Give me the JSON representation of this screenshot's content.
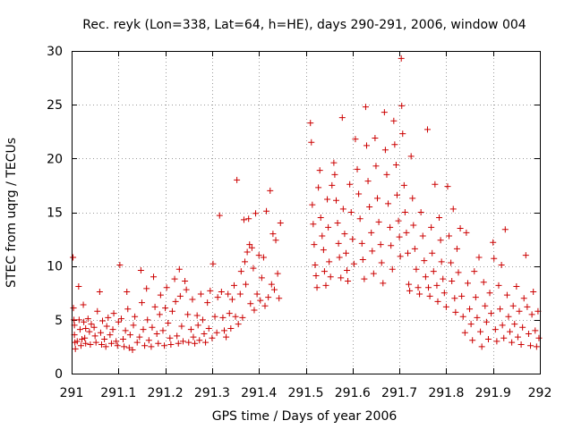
{
  "chart_data": {
    "type": "scatter",
    "title": "Rec. reyk (Lon=338, Lat=64, h=HE), days 290-291, 2006, window 004",
    "xlabel": "GPS time / Days of year 2006",
    "ylabel": "STEC from uqrg / TECUs",
    "xlim": [
      291,
      292
    ],
    "ylim": [
      0,
      30
    ],
    "x_ticks": [
      291,
      291.1,
      291.2,
      291.3,
      291.4,
      291.5,
      291.6,
      291.7,
      291.8,
      291.9,
      292
    ],
    "x_tick_labels": [
      "291",
      "291.1",
      "291.2",
      "291.3",
      "291.4",
      "291.5",
      "291.6",
      "291.7",
      "291.8",
      "291.9",
      "292"
    ],
    "y_ticks": [
      0,
      5,
      10,
      15,
      20,
      25,
      30
    ],
    "y_tick_labels": [
      "0",
      "5",
      "10",
      "15",
      "20",
      "25",
      "30"
    ],
    "grid": true,
    "marker": "+",
    "color": "#cc0000",
    "points": [
      [
        291.003,
        10.8
      ],
      [
        291.004,
        6.1
      ],
      [
        291.005,
        5.0
      ],
      [
        291.006,
        3.6
      ],
      [
        291.007,
        2.9
      ],
      [
        291.008,
        2.3
      ],
      [
        291.006,
        4.5
      ],
      [
        291.012,
        3.0
      ],
      [
        291.015,
        8.1
      ],
      [
        291.016,
        5.0
      ],
      [
        291.018,
        4.1
      ],
      [
        291.02,
        2.6
      ],
      [
        291.022,
        3.2
      ],
      [
        291.025,
        6.4
      ],
      [
        291.026,
        4.8
      ],
      [
        291.028,
        3.3
      ],
      [
        291.03,
        2.8
      ],
      [
        291.03,
        4.2
      ],
      [
        291.035,
        5.1
      ],
      [
        291.038,
        3.9
      ],
      [
        291.04,
        2.7
      ],
      [
        291.042,
        4.6
      ],
      [
        291.048,
        4.3
      ],
      [
        291.05,
        3.5
      ],
      [
        291.052,
        2.9
      ],
      [
        291.055,
        5.8
      ],
      [
        291.06,
        7.6
      ],
      [
        291.062,
        3.8
      ],
      [
        291.064,
        2.7
      ],
      [
        291.066,
        4.9
      ],
      [
        291.07,
        3.2
      ],
      [
        291.073,
        2.5
      ],
      [
        291.075,
        4.4
      ],
      [
        291.078,
        5.2
      ],
      [
        291.082,
        3.6
      ],
      [
        291.085,
        2.8
      ],
      [
        291.088,
        4.1
      ],
      [
        291.09,
        5.6
      ],
      [
        291.095,
        3.0
      ],
      [
        291.098,
        2.6
      ],
      [
        291.1,
        4.8
      ],
      [
        291.103,
        10.1
      ],
      [
        291.106,
        5.1
      ],
      [
        291.11,
        3.2
      ],
      [
        291.112,
        2.5
      ],
      [
        291.115,
        4.0
      ],
      [
        291.118,
        7.6
      ],
      [
        291.12,
        6.0
      ],
      [
        291.123,
        2.4
      ],
      [
        291.125,
        3.6
      ],
      [
        291.13,
        2.2
      ],
      [
        291.132,
        4.5
      ],
      [
        291.135,
        5.3
      ],
      [
        291.14,
        2.9
      ],
      [
        291.145,
        3.4
      ],
      [
        291.148,
        9.6
      ],
      [
        291.15,
        6.6
      ],
      [
        291.153,
        4.1
      ],
      [
        291.156,
        2.6
      ],
      [
        291.16,
        7.9
      ],
      [
        291.162,
        5.0
      ],
      [
        291.165,
        3.1
      ],
      [
        291.17,
        2.5
      ],
      [
        291.172,
        4.3
      ],
      [
        291.175,
        9.0
      ],
      [
        291.178,
        6.2
      ],
      [
        291.182,
        3.7
      ],
      [
        291.185,
        2.8
      ],
      [
        291.188,
        5.5
      ],
      [
        291.19,
        7.3
      ],
      [
        291.195,
        4.0
      ],
      [
        291.198,
        2.6
      ],
      [
        291.2,
        6.1
      ],
      [
        291.203,
        8.0
      ],
      [
        291.206,
        4.7
      ],
      [
        291.21,
        3.3
      ],
      [
        291.212,
        2.7
      ],
      [
        291.215,
        5.8
      ],
      [
        291.22,
        8.8
      ],
      [
        291.222,
        6.7
      ],
      [
        291.225,
        3.5
      ],
      [
        291.228,
        2.8
      ],
      [
        291.23,
        9.7
      ],
      [
        291.232,
        7.2
      ],
      [
        291.235,
        4.4
      ],
      [
        291.238,
        3.0
      ],
      [
        291.242,
        8.6
      ],
      [
        291.245,
        7.8
      ],
      [
        291.248,
        5.5
      ],
      [
        291.25,
        2.9
      ],
      [
        291.255,
        4.1
      ],
      [
        291.258,
        6.9
      ],
      [
        291.26,
        3.4
      ],
      [
        291.263,
        2.8
      ],
      [
        291.268,
        5.4
      ],
      [
        291.27,
        4.5
      ],
      [
        291.273,
        3.1
      ],
      [
        291.276,
        7.4
      ],
      [
        291.28,
        5.0
      ],
      [
        291.283,
        3.7
      ],
      [
        291.286,
        2.9
      ],
      [
        291.29,
        6.6
      ],
      [
        291.293,
        4.2
      ],
      [
        291.296,
        7.7
      ],
      [
        291.3,
        3.3
      ],
      [
        291.302,
        10.2
      ],
      [
        291.306,
        5.3
      ],
      [
        291.31,
        3.8
      ],
      [
        291.312,
        7.1
      ],
      [
        291.316,
        14.7
      ],
      [
        291.32,
        7.6
      ],
      [
        291.323,
        5.2
      ],
      [
        291.326,
        4.0
      ],
      [
        291.33,
        3.4
      ],
      [
        291.334,
        7.4
      ],
      [
        291.337,
        5.6
      ],
      [
        291.34,
        4.2
      ],
      [
        291.343,
        6.9
      ],
      [
        291.347,
        8.2
      ],
      [
        291.35,
        5.3
      ],
      [
        291.353,
        18.0
      ],
      [
        291.356,
        4.6
      ],
      [
        291.36,
        7.4
      ],
      [
        291.362,
        9.5
      ],
      [
        291.365,
        5.2
      ],
      [
        291.368,
        14.3
      ],
      [
        291.37,
        10.4
      ],
      [
        291.372,
        8.3
      ],
      [
        291.375,
        11.3
      ],
      [
        291.378,
        14.4
      ],
      [
        291.38,
        12.0
      ],
      [
        291.382,
        6.5
      ],
      [
        291.385,
        11.7
      ],
      [
        291.388,
        9.8
      ],
      [
        291.39,
        5.9
      ],
      [
        291.393,
        14.9
      ],
      [
        291.396,
        7.4
      ],
      [
        291.4,
        11.0
      ],
      [
        291.403,
        6.8
      ],
      [
        291.406,
        8.9
      ],
      [
        291.41,
        10.8
      ],
      [
        291.413,
        6.3
      ],
      [
        291.416,
        15.1
      ],
      [
        291.42,
        7.1
      ],
      [
        291.424,
        17.0
      ],
      [
        291.427,
        8.3
      ],
      [
        291.43,
        13.0
      ],
      [
        291.433,
        7.8
      ],
      [
        291.436,
        12.4
      ],
      [
        291.44,
        9.3
      ],
      [
        291.443,
        7.0
      ],
      [
        291.446,
        14.0
      ],
      [
        291.51,
        23.3
      ],
      [
        291.512,
        21.5
      ],
      [
        291.514,
        15.7
      ],
      [
        291.516,
        13.9
      ],
      [
        291.518,
        12.0
      ],
      [
        291.52,
        10.1
      ],
      [
        291.522,
        9.1
      ],
      [
        291.524,
        8.0
      ],
      [
        291.527,
        17.3
      ],
      [
        291.53,
        18.9
      ],
      [
        291.532,
        14.5
      ],
      [
        291.535,
        12.8
      ],
      [
        291.538,
        11.5
      ],
      [
        291.54,
        9.5
      ],
      [
        291.543,
        8.2
      ],
      [
        291.546,
        16.2
      ],
      [
        291.548,
        13.6
      ],
      [
        291.55,
        10.4
      ],
      [
        291.553,
        9.0
      ],
      [
        291.556,
        17.5
      ],
      [
        291.56,
        19.6
      ],
      [
        291.562,
        18.5
      ],
      [
        291.565,
        16.1
      ],
      [
        291.568,
        14.0
      ],
      [
        291.57,
        12.1
      ],
      [
        291.572,
        10.8
      ],
      [
        291.575,
        8.9
      ],
      [
        291.578,
        23.8
      ],
      [
        291.58,
        15.3
      ],
      [
        291.583,
        13.0
      ],
      [
        291.586,
        11.2
      ],
      [
        291.588,
        9.6
      ],
      [
        291.59,
        8.6
      ],
      [
        291.594,
        17.6
      ],
      [
        291.597,
        15.0
      ],
      [
        291.6,
        12.5
      ],
      [
        291.603,
        10.2
      ],
      [
        291.606,
        21.8
      ],
      [
        291.61,
        19.0
      ],
      [
        291.613,
        16.7
      ],
      [
        291.616,
        14.4
      ],
      [
        291.62,
        12.1
      ],
      [
        291.622,
        10.6
      ],
      [
        291.625,
        8.8
      ],
      [
        291.628,
        24.8
      ],
      [
        291.63,
        21.2
      ],
      [
        291.633,
        17.9
      ],
      [
        291.636,
        15.5
      ],
      [
        291.64,
        13.1
      ],
      [
        291.642,
        11.4
      ],
      [
        291.645,
        9.3
      ],
      [
        291.648,
        21.9
      ],
      [
        291.65,
        19.3
      ],
      [
        291.653,
        16.3
      ],
      [
        291.656,
        14.1
      ],
      [
        291.66,
        12.0
      ],
      [
        291.662,
        10.3
      ],
      [
        291.665,
        8.4
      ],
      [
        291.668,
        24.3
      ],
      [
        291.67,
        20.8
      ],
      [
        291.673,
        18.5
      ],
      [
        291.676,
        15.8
      ],
      [
        291.68,
        13.6
      ],
      [
        291.682,
        11.9
      ],
      [
        291.685,
        9.7
      ],
      [
        291.688,
        23.5
      ],
      [
        291.69,
        21.3
      ],
      [
        291.693,
        19.4
      ],
      [
        291.695,
        16.6
      ],
      [
        291.698,
        14.2
      ],
      [
        291.7,
        12.7
      ],
      [
        291.702,
        10.9
      ],
      [
        291.704,
        29.3
      ],
      [
        291.705,
        24.9
      ],
      [
        291.707,
        22.3
      ],
      [
        291.71,
        17.5
      ],
      [
        291.712,
        15.0
      ],
      [
        291.715,
        13.1
      ],
      [
        291.718,
        11.2
      ],
      [
        291.72,
        8.3
      ],
      [
        291.722,
        7.7
      ],
      [
        291.725,
        20.2
      ],
      [
        291.728,
        16.3
      ],
      [
        291.73,
        13.8
      ],
      [
        291.733,
        11.6
      ],
      [
        291.736,
        9.7
      ],
      [
        291.74,
        8.0
      ],
      [
        291.743,
        7.4
      ],
      [
        291.746,
        15.0
      ],
      [
        291.75,
        12.8
      ],
      [
        291.753,
        10.5
      ],
      [
        291.756,
        9.0
      ],
      [
        291.76,
        22.7
      ],
      [
        291.762,
        8.0
      ],
      [
        291.765,
        7.2
      ],
      [
        291.768,
        13.6
      ],
      [
        291.77,
        11.2
      ],
      [
        291.773,
        9.5
      ],
      [
        291.776,
        17.6
      ],
      [
        291.78,
        8.2
      ],
      [
        291.782,
        6.7
      ],
      [
        291.785,
        14.5
      ],
      [
        291.788,
        12.4
      ],
      [
        291.79,
        10.4
      ],
      [
        291.793,
        8.8
      ],
      [
        291.796,
        7.5
      ],
      [
        291.8,
        6.2
      ],
      [
        291.803,
        17.4
      ],
      [
        291.806,
        12.8
      ],
      [
        291.81,
        10.3
      ],
      [
        291.812,
        8.6
      ],
      [
        291.815,
        15.3
      ],
      [
        291.818,
        7.0
      ],
      [
        291.82,
        5.7
      ],
      [
        291.823,
        11.6
      ],
      [
        291.826,
        9.4
      ],
      [
        291.83,
        13.5
      ],
      [
        291.833,
        7.2
      ],
      [
        291.836,
        5.3
      ],
      [
        291.84,
        3.8
      ],
      [
        291.843,
        13.1
      ],
      [
        291.846,
        8.4
      ],
      [
        291.85,
        6.0
      ],
      [
        291.853,
        4.6
      ],
      [
        291.856,
        3.1
      ],
      [
        291.86,
        9.5
      ],
      [
        291.863,
        7.1
      ],
      [
        291.866,
        5.2
      ],
      [
        291.87,
        10.8
      ],
      [
        291.873,
        3.9
      ],
      [
        291.876,
        2.5
      ],
      [
        291.88,
        8.5
      ],
      [
        291.883,
        6.3
      ],
      [
        291.886,
        4.8
      ],
      [
        291.89,
        3.2
      ],
      [
        291.893,
        7.5
      ],
      [
        291.896,
        5.6
      ],
      [
        291.9,
        12.2
      ],
      [
        291.902,
        10.7
      ],
      [
        291.905,
        4.1
      ],
      [
        291.908,
        3.0
      ],
      [
        291.912,
        8.2
      ],
      [
        291.915,
        6.0
      ],
      [
        291.918,
        10.1
      ],
      [
        291.92,
        4.5
      ],
      [
        291.923,
        3.3
      ],
      [
        291.926,
        13.4
      ],
      [
        291.93,
        7.3
      ],
      [
        291.933,
        5.3
      ],
      [
        291.936,
        3.9
      ],
      [
        291.94,
        2.9
      ],
      [
        291.943,
        6.3
      ],
      [
        291.946,
        4.6
      ],
      [
        291.95,
        8.1
      ],
      [
        291.953,
        3.4
      ],
      [
        291.956,
        5.8
      ],
      [
        291.96,
        2.7
      ],
      [
        291.963,
        4.3
      ],
      [
        291.966,
        7.0
      ],
      [
        291.97,
        11.0
      ],
      [
        291.973,
        6.2
      ],
      [
        291.976,
        3.7
      ],
      [
        291.98,
        2.6
      ],
      [
        291.983,
        5.5
      ],
      [
        291.986,
        7.6
      ],
      [
        291.99,
        4.0
      ],
      [
        291.993,
        2.5
      ],
      [
        291.996,
        5.8
      ],
      [
        291.998,
        3.3
      ]
    ]
  }
}
